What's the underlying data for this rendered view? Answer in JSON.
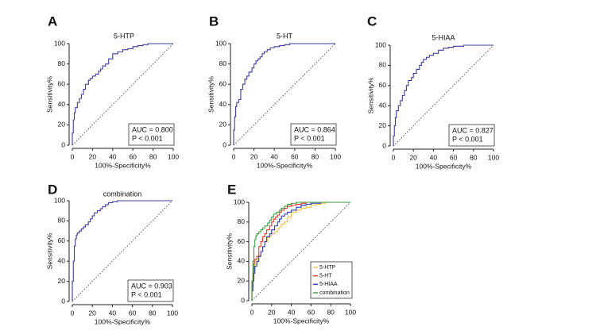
{
  "chart_data": [
    {
      "panel": "A",
      "type": "line",
      "title": "5-HTP",
      "xlabel": "100%-Specificity%",
      "ylabel": "Sensitivity%",
      "xlim": [
        0,
        100
      ],
      "ylim": [
        0,
        100
      ],
      "xticks": [
        0,
        20,
        40,
        60,
        80,
        100
      ],
      "yticks": [
        0,
        20,
        40,
        60,
        80,
        100
      ],
      "auc_label": "AUC = 0.800",
      "p_label": "P < 0.001",
      "reference_line": {
        "x": [
          0,
          100
        ],
        "y": [
          0,
          100
        ],
        "style": "dotted"
      },
      "series": [
        {
          "name": "5-HTP",
          "color": "#3d3d9e",
          "x": [
            0,
            1,
            2,
            3,
            5,
            7,
            9,
            11,
            13,
            16,
            18,
            20,
            23,
            26,
            28,
            30,
            33,
            36,
            40,
            45,
            50,
            55,
            60,
            65,
            70,
            75,
            80,
            90,
            100
          ],
          "y": [
            0,
            12,
            25,
            32,
            37,
            42,
            46,
            50,
            55,
            60,
            64,
            66,
            68,
            70,
            73,
            75,
            78,
            80,
            85,
            90,
            92,
            94,
            95,
            97,
            98,
            99,
            100,
            100,
            100
          ]
        }
      ]
    },
    {
      "panel": "B",
      "type": "line",
      "title": "5-HT",
      "xlabel": "100%-Specificity%",
      "ylabel": "Sensitivity%",
      "xlim": [
        0,
        100
      ],
      "ylim": [
        0,
        100
      ],
      "xticks": [
        0,
        20,
        40,
        60,
        80,
        100
      ],
      "yticks": [
        0,
        20,
        40,
        60,
        80,
        100
      ],
      "auc_label": "AUC = 0.864",
      "p_label": "P < 0.001",
      "reference_line": {
        "x": [
          0,
          100
        ],
        "y": [
          0,
          100
        ],
        "style": "dotted"
      },
      "series": [
        {
          "name": "5-HT",
          "color": "#3d3d9e",
          "x": [
            0,
            1,
            2,
            3,
            5,
            7,
            9,
            11,
            13,
            15,
            18,
            20,
            22,
            24,
            26,
            28,
            30,
            33,
            36,
            40,
            45,
            50,
            55,
            60,
            70,
            80,
            90,
            100
          ],
          "y": [
            0,
            15,
            28,
            38,
            42,
            45,
            55,
            60,
            65,
            68,
            72,
            76,
            80,
            83,
            85,
            87,
            90,
            92,
            94,
            96,
            97,
            98,
            99,
            100,
            100,
            100,
            100,
            100
          ]
        }
      ]
    },
    {
      "panel": "C",
      "type": "line",
      "title": "5-HIAA",
      "xlabel": "100%-Specificity%",
      "ylabel": "Sensitivity%",
      "xlim": [
        0,
        100
      ],
      "ylim": [
        0,
        100
      ],
      "xticks": [
        0,
        20,
        40,
        60,
        80,
        100
      ],
      "yticks": [
        0,
        20,
        40,
        60,
        80,
        100
      ],
      "auc_label": "AUC = 0.827",
      "p_label": "P < 0.001",
      "reference_line": {
        "x": [
          0,
          100
        ],
        "y": [
          0,
          100
        ],
        "style": "dotted"
      },
      "series": [
        {
          "name": "5-HIAA",
          "color": "#3d3d9e",
          "x": [
            0,
            1,
            2,
            3,
            5,
            7,
            9,
            11,
            13,
            15,
            18,
            20,
            23,
            26,
            28,
            30,
            33,
            36,
            40,
            45,
            50,
            55,
            60,
            70,
            80,
            90,
            100
          ],
          "y": [
            0,
            10,
            20,
            28,
            35,
            40,
            45,
            50,
            55,
            60,
            65,
            68,
            72,
            76,
            80,
            83,
            86,
            88,
            90,
            92,
            95,
            97,
            98,
            99,
            100,
            100,
            100
          ]
        }
      ]
    },
    {
      "panel": "D",
      "type": "line",
      "title": "combination",
      "xlabel": "100%-Specificity%",
      "ylabel": "Sensitivity%",
      "xlim": [
        0,
        100
      ],
      "ylim": [
        0,
        100
      ],
      "xticks": [
        0,
        20,
        40,
        60,
        80,
        100
      ],
      "yticks": [
        0,
        20,
        40,
        60,
        80,
        100
      ],
      "auc_label": "AUC = 0.903",
      "p_label": "P < 0.001",
      "reference_line": {
        "x": [
          0,
          100
        ],
        "y": [
          0,
          100
        ],
        "style": "dotted"
      },
      "series": [
        {
          "name": "combination",
          "color": "#3d3d9e",
          "x": [
            0,
            1,
            2,
            3,
            4,
            5,
            7,
            9,
            11,
            13,
            16,
            18,
            20,
            22,
            25,
            28,
            30,
            33,
            36,
            40,
            45,
            50,
            60,
            70,
            80,
            90,
            100
          ],
          "y": [
            0,
            20,
            40,
            55,
            62,
            66,
            68,
            70,
            72,
            74,
            76,
            79,
            82,
            85,
            88,
            90,
            92,
            94,
            96,
            98,
            99,
            100,
            100,
            100,
            100,
            100,
            100
          ]
        }
      ]
    },
    {
      "panel": "E",
      "type": "line",
      "title": "",
      "xlabel": "100%-Specificity%",
      "ylabel": "Sensitivity%",
      "xlim": [
        0,
        100
      ],
      "ylim": [
        0,
        100
      ],
      "xticks": [
        0,
        20,
        40,
        60,
        80,
        100
      ],
      "yticks": [
        0,
        20,
        40,
        60,
        80,
        100
      ],
      "reference_line": {
        "x": [
          0,
          100
        ],
        "y": [
          0,
          100
        ],
        "style": "dotted"
      },
      "legend": {
        "placement": "bottom-right"
      },
      "series": [
        {
          "name": "5-HTP",
          "color": "#f5c242",
          "x": [
            0,
            1,
            2,
            3,
            5,
            7,
            9,
            11,
            13,
            16,
            18,
            20,
            23,
            26,
            28,
            30,
            33,
            36,
            40,
            45,
            50,
            55,
            60,
            65,
            70,
            75,
            80,
            90,
            100
          ],
          "y": [
            0,
            12,
            25,
            32,
            37,
            42,
            46,
            50,
            55,
            60,
            64,
            66,
            68,
            70,
            73,
            75,
            78,
            80,
            85,
            90,
            92,
            94,
            95,
            97,
            98,
            99,
            100,
            100,
            100
          ]
        },
        {
          "name": "5-HT",
          "color": "#e8382f",
          "x": [
            0,
            1,
            2,
            3,
            5,
            7,
            9,
            11,
            13,
            15,
            18,
            20,
            22,
            24,
            26,
            28,
            30,
            33,
            36,
            40,
            45,
            50,
            55,
            60,
            70,
            80,
            90,
            100
          ],
          "y": [
            0,
            15,
            28,
            38,
            42,
            45,
            55,
            60,
            65,
            68,
            72,
            76,
            80,
            83,
            85,
            87,
            90,
            92,
            94,
            96,
            97,
            98,
            99,
            100,
            100,
            100,
            100,
            100
          ]
        },
        {
          "name": "5-HIAA",
          "color": "#2b3bb5",
          "x": [
            0,
            1,
            2,
            3,
            5,
            7,
            9,
            11,
            13,
            15,
            18,
            20,
            23,
            26,
            28,
            30,
            33,
            36,
            40,
            45,
            50,
            55,
            60,
            70,
            80,
            90,
            100
          ],
          "y": [
            0,
            10,
            20,
            28,
            35,
            40,
            45,
            50,
            55,
            60,
            65,
            68,
            72,
            76,
            80,
            83,
            86,
            88,
            90,
            92,
            95,
            97,
            98,
            99,
            100,
            100,
            100
          ]
        },
        {
          "name": "combination",
          "color": "#3a9a3a",
          "x": [
            0,
            1,
            2,
            3,
            4,
            5,
            7,
            9,
            11,
            13,
            16,
            18,
            20,
            22,
            25,
            28,
            30,
            33,
            36,
            40,
            45,
            50,
            60,
            70,
            80,
            90,
            100
          ],
          "y": [
            0,
            20,
            40,
            55,
            62,
            66,
            68,
            70,
            72,
            74,
            76,
            79,
            82,
            85,
            88,
            90,
            92,
            94,
            96,
            98,
            99,
            100,
            100,
            100,
            100,
            100,
            100
          ]
        }
      ]
    }
  ]
}
